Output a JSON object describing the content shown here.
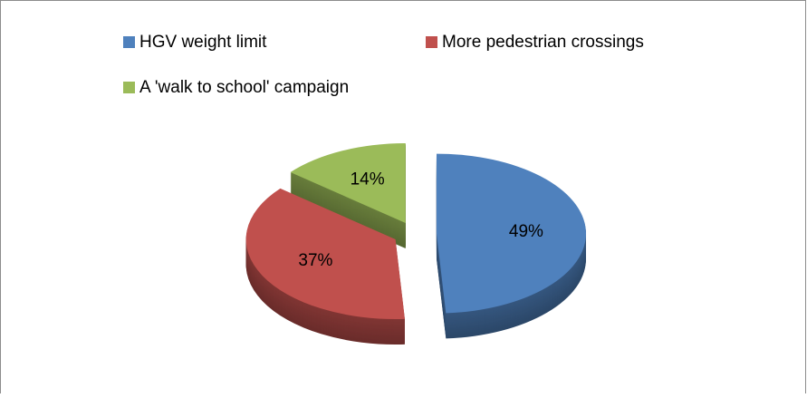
{
  "chart_data": {
    "type": "pie",
    "categories": [
      "HGV weight limit",
      "More pedestrian crossings",
      "A 'walk to school' campaign"
    ],
    "values": [
      49,
      37,
      14
    ],
    "value_labels": [
      "49%",
      "37%",
      "14%"
    ],
    "colors": [
      "#4f81bd",
      "#c0504d",
      "#9bbb59"
    ],
    "legend": "top"
  }
}
